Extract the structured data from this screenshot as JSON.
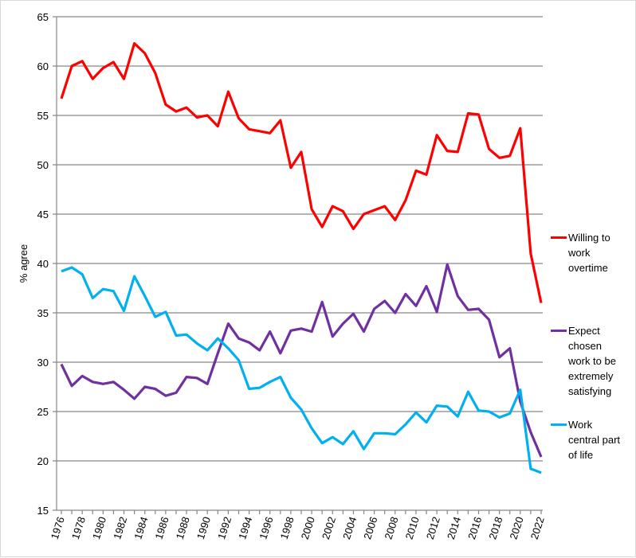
{
  "chart_data": {
    "type": "line",
    "title": "",
    "xlabel": "",
    "ylabel": "% agree",
    "ylim": [
      15,
      65
    ],
    "yticks": [
      "15",
      "20",
      "25",
      "30",
      "35",
      "40",
      "45",
      "50",
      "55",
      "60",
      "65"
    ],
    "grid": true,
    "legend_placement": "right",
    "x": [
      1976,
      1977,
      1978,
      1979,
      1980,
      1981,
      1982,
      1983,
      1984,
      1985,
      1986,
      1987,
      1988,
      1989,
      1990,
      1991,
      1992,
      1993,
      1994,
      1995,
      1996,
      1997,
      1998,
      1999,
      2000,
      2001,
      2002,
      2003,
      2004,
      2005,
      2006,
      2007,
      2008,
      2009,
      2010,
      2011,
      2012,
      2013,
      2014,
      2015,
      2016,
      2017,
      2018,
      2019,
      2020,
      2021,
      2022
    ],
    "xtick_labels": [
      "1976",
      "1978",
      "1980",
      "1982",
      "1984",
      "1986",
      "1988",
      "1990",
      "1992",
      "1994",
      "1996",
      "1998",
      "2000",
      "2002",
      "2004",
      "2006",
      "2008",
      "2010",
      "2012",
      "2014",
      "2016",
      "2018",
      "2020",
      "2022"
    ],
    "series": [
      {
        "name": "Willing to work overtime",
        "legend_lines": [
          "Willing to",
          "work",
          "overtime"
        ],
        "color": "#ff0000",
        "values": [
          56.7,
          60.0,
          60.5,
          58.7,
          59.8,
          60.4,
          58.7,
          62.3,
          61.3,
          59.3,
          56.1,
          55.4,
          55.8,
          54.8,
          55.0,
          53.9,
          57.4,
          54.7,
          53.6,
          53.4,
          53.2,
          54.5,
          49.7,
          51.3,
          45.5,
          43.7,
          45.8,
          45.3,
          43.5,
          45.0,
          45.4,
          45.8,
          44.4,
          46.4,
          49.4,
          49.0,
          53.0,
          51.4,
          51.3,
          55.2,
          55.1,
          51.6,
          50.7,
          50.9,
          53.7,
          41.0,
          36.0
        ]
      },
      {
        "name": "Expect chosen work to be extremely satisfying",
        "legend_lines": [
          "Expect",
          "chosen",
          "work to be",
          "extremely",
          "satisfying"
        ],
        "color": "#7030a0",
        "values": [
          29.8,
          27.6,
          28.6,
          28.0,
          27.8,
          28.0,
          27.2,
          26.3,
          27.5,
          27.3,
          26.6,
          26.9,
          28.5,
          28.4,
          27.8,
          30.9,
          33.9,
          32.4,
          32.0,
          31.2,
          33.1,
          30.9,
          33.2,
          33.4,
          33.1,
          36.1,
          32.6,
          33.9,
          34.9,
          33.1,
          35.4,
          36.2,
          35.0,
          36.9,
          35.7,
          37.7,
          35.1,
          39.9,
          36.7,
          35.3,
          35.4,
          34.3,
          30.5,
          31.4,
          26.0,
          22.9,
          20.4
        ]
      },
      {
        "name": "Work central part of life",
        "legend_lines": [
          "Work",
          "central part",
          "of life"
        ],
        "color": "#00b0f0",
        "values": [
          39.2,
          39.6,
          38.9,
          36.5,
          37.4,
          37.2,
          35.2,
          38.7,
          36.7,
          34.6,
          35.1,
          32.7,
          32.8,
          31.9,
          31.2,
          32.4,
          31.4,
          30.2,
          27.3,
          27.4,
          28.0,
          28.5,
          26.4,
          25.2,
          23.3,
          21.8,
          22.4,
          21.7,
          23.0,
          21.2,
          22.8,
          22.8,
          22.7,
          23.7,
          24.9,
          23.9,
          25.6,
          25.5,
          24.5,
          27.0,
          25.1,
          25.0,
          24.4,
          24.8,
          27.2,
          19.2,
          18.8
        ]
      }
    ]
  }
}
